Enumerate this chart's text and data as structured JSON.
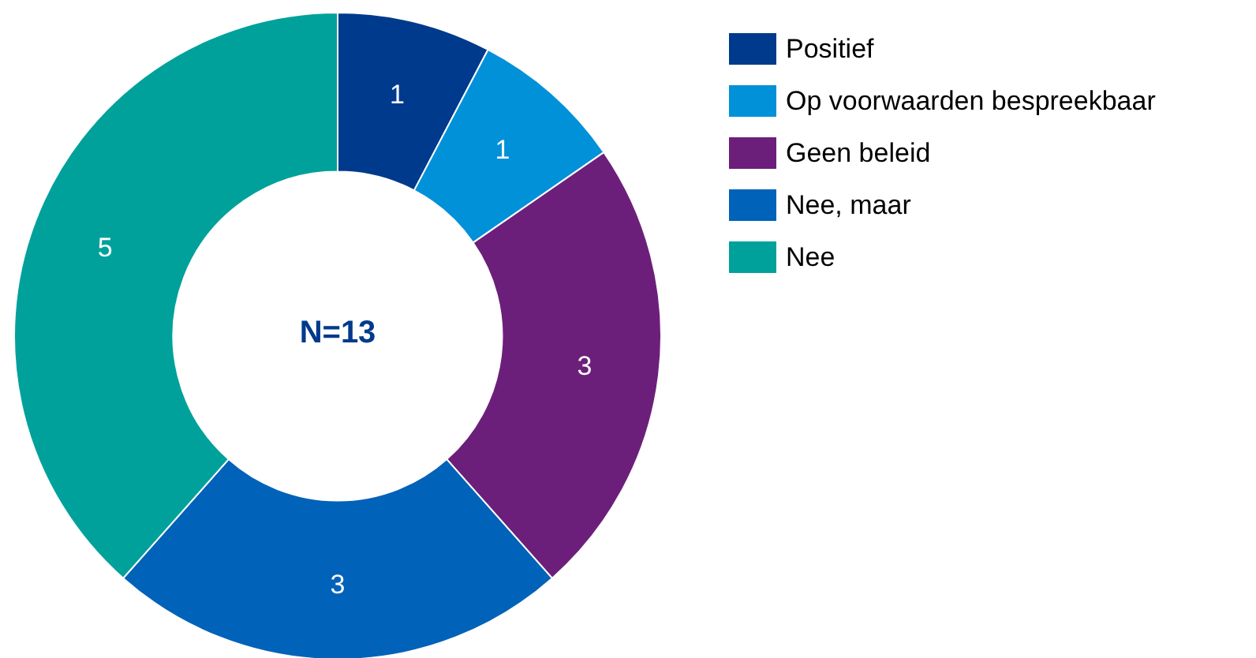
{
  "chart_data": {
    "type": "donut",
    "categories": [
      "Positief",
      "Op voorwaarden bespreekbaar",
      "Geen beleid",
      "Nee, maar",
      "Nee"
    ],
    "values": [
      1,
      1,
      3,
      3,
      5
    ],
    "colors": [
      "#003a8c",
      "#0091d9",
      "#6c1f7a",
      "#0062b8",
      "#00a19b"
    ],
    "annotations": [
      "N=13"
    ],
    "data_labels": true,
    "legend": "top right"
  }
}
